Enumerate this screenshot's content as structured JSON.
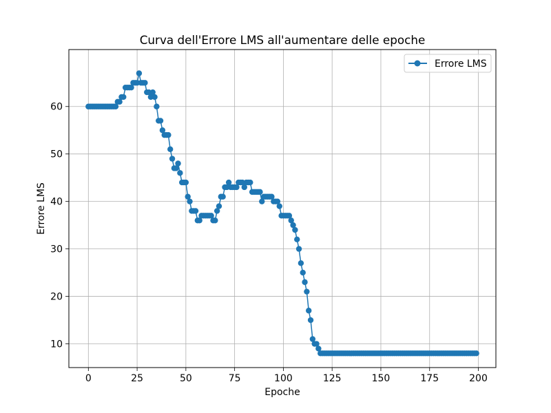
{
  "chart_data": {
    "type": "line",
    "title": "Curva dell'Errore LMS all'aumentare delle epoche",
    "xlabel": "Epoche",
    "ylabel": "Errore LMS",
    "xlim": [
      -10,
      209
    ],
    "ylim": [
      5,
      72
    ],
    "xticks": [
      0,
      25,
      50,
      75,
      100,
      125,
      150,
      175,
      200
    ],
    "yticks": [
      10,
      20,
      30,
      40,
      50,
      60
    ],
    "grid": true,
    "legend_position": "top-right",
    "series": [
      {
        "name": "Errore LMS",
        "color": "#1f77b4",
        "marker": "circle",
        "x_start": 0,
        "x_step": 1,
        "values": [
          60,
          60,
          60,
          60,
          60,
          60,
          60,
          60,
          60,
          60,
          60,
          60,
          60,
          60,
          60,
          61,
          61,
          62,
          62,
          64,
          64,
          64,
          64,
          65,
          65,
          65,
          67,
          65,
          65,
          65,
          63,
          63,
          62,
          63,
          62,
          60,
          57,
          57,
          55,
          54,
          54,
          54,
          51,
          49,
          47,
          47,
          48,
          46,
          44,
          44,
          44,
          41,
          40,
          38,
          38,
          38,
          36,
          36,
          37,
          37,
          37,
          37,
          37,
          37,
          36,
          36,
          38,
          39,
          41,
          41,
          43,
          43,
          44,
          43,
          43,
          43,
          43,
          44,
          44,
          44,
          43,
          44,
          44,
          44,
          42,
          42,
          42,
          42,
          42,
          40,
          41,
          41,
          41,
          41,
          41,
          40,
          40,
          40,
          39,
          37,
          37,
          37,
          37,
          37,
          36,
          35,
          34,
          32,
          30,
          27,
          25,
          23,
          21,
          17,
          15,
          11,
          10,
          10,
          9,
          8,
          8,
          8,
          8,
          8,
          8,
          8,
          8,
          8,
          8,
          8,
          8,
          8,
          8,
          8,
          8,
          8,
          8,
          8,
          8,
          8,
          8,
          8,
          8,
          8,
          8,
          8,
          8,
          8,
          8,
          8,
          8,
          8,
          8,
          8,
          8,
          8,
          8,
          8,
          8,
          8,
          8,
          8,
          8,
          8,
          8,
          8,
          8,
          8,
          8,
          8,
          8,
          8,
          8,
          8,
          8,
          8,
          8,
          8,
          8,
          8,
          8,
          8,
          8,
          8,
          8,
          8,
          8,
          8,
          8,
          8,
          8,
          8,
          8,
          8,
          8,
          8,
          8,
          8,
          8,
          8
        ]
      }
    ]
  }
}
